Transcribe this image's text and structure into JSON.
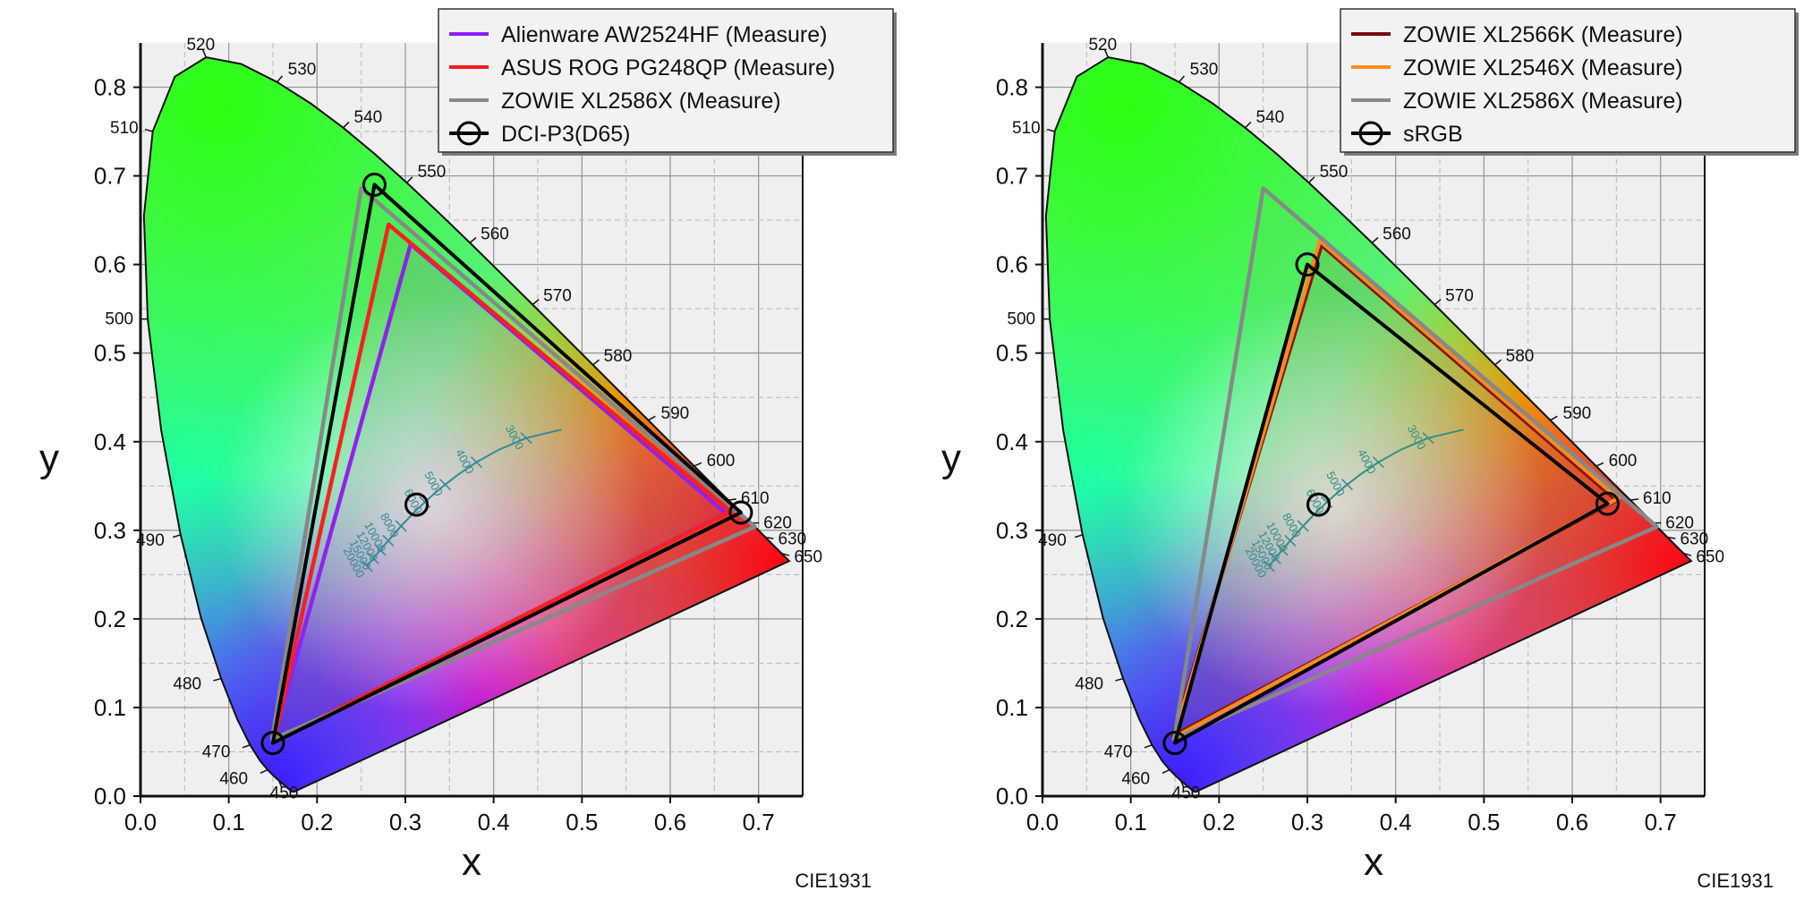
{
  "chart_data": [
    {
      "type": "scatter",
      "diagram": "CIE 1931 chromaticity diagram",
      "xlabel": "x",
      "ylabel": "y",
      "xlim": [
        0.0,
        0.75
      ],
      "ylim": [
        0.0,
        0.85
      ],
      "xticks": [
        "0.0",
        "0.1",
        "0.2",
        "0.3",
        "0.4",
        "0.5",
        "0.6",
        "0.7"
      ],
      "yticks": [
        "0.0",
        "0.1",
        "0.2",
        "0.3",
        "0.4",
        "0.5",
        "0.6",
        "0.7",
        "0.8"
      ],
      "grid": true,
      "footer": "CIE1931",
      "legend_position": "top-right",
      "wavelength_labels": [
        "450",
        "460",
        "470",
        "480",
        "490",
        "500",
        "510",
        "520",
        "530",
        "540",
        "550",
        "560",
        "570",
        "580",
        "590",
        "600",
        "610",
        "620",
        "630",
        "650"
      ],
      "cct_labels": [
        "3000",
        "4000",
        "5000",
        "6000",
        "8000",
        "10000",
        "12000",
        "15000",
        "20000"
      ],
      "series": [
        {
          "name": "Alienware AW2524HF (Measure)",
          "color": "#8b1cff",
          "points": [
            [
              0.306,
              0.623
            ],
            [
              0.663,
              0.319
            ],
            [
              0.15,
              0.061
            ]
          ]
        },
        {
          "name": "ASUS ROG PG248QP (Measure)",
          "color": "#ff1a1a",
          "points": [
            [
              0.281,
              0.645
            ],
            [
              0.668,
              0.321
            ],
            [
              0.151,
              0.062
            ]
          ]
        },
        {
          "name": "ZOWIE XL2586X (Measure)",
          "color": "#888888",
          "points": [
            [
              0.25,
              0.686
            ],
            [
              0.696,
              0.304
            ],
            [
              0.149,
              0.064
            ]
          ]
        },
        {
          "name": "DCI-P3(D65)",
          "color": "#000000",
          "marker": "circle",
          "points": [
            [
              0.265,
              0.69
            ],
            [
              0.68,
              0.32
            ],
            [
              0.15,
              0.06
            ],
            [
              0.3127,
              0.329
            ]
          ]
        }
      ]
    },
    {
      "type": "scatter",
      "diagram": "CIE 1931 chromaticity diagram",
      "xlabel": "x",
      "ylabel": "y",
      "xlim": [
        0.0,
        0.75
      ],
      "ylim": [
        0.0,
        0.85
      ],
      "xticks": [
        "0.0",
        "0.1",
        "0.2",
        "0.3",
        "0.4",
        "0.5",
        "0.6",
        "0.7"
      ],
      "yticks": [
        "0.0",
        "0.1",
        "0.2",
        "0.3",
        "0.4",
        "0.5",
        "0.6",
        "0.7",
        "0.8"
      ],
      "grid": true,
      "footer": "CIE1931",
      "legend_position": "top-right",
      "wavelength_labels": [
        "450",
        "460",
        "470",
        "480",
        "490",
        "500",
        "510",
        "520",
        "530",
        "540",
        "550",
        "560",
        "570",
        "580",
        "590",
        "600",
        "610",
        "620",
        "630",
        "650"
      ],
      "cct_labels": [
        "3000",
        "4000",
        "5000",
        "6000",
        "8000",
        "10000",
        "12000",
        "15000",
        "20000"
      ],
      "series": [
        {
          "name": "ZOWIE XL2566K (Measure)",
          "color": "#7a0a0a",
          "points": [
            [
              0.316,
              0.622
            ],
            [
              0.65,
              0.334
            ],
            [
              0.148,
              0.068
            ]
          ]
        },
        {
          "name": "ZOWIE XL2546X (Measure)",
          "color": "#ff8c1a",
          "points": [
            [
              0.314,
              0.627
            ],
            [
              0.652,
              0.336
            ],
            [
              0.149,
              0.066
            ]
          ]
        },
        {
          "name": "ZOWIE XL2586X (Measure)",
          "color": "#888888",
          "points": [
            [
              0.25,
              0.686
            ],
            [
              0.696,
              0.304
            ],
            [
              0.149,
              0.064
            ]
          ]
        },
        {
          "name": "sRGB",
          "color": "#000000",
          "marker": "circle",
          "points": [
            [
              0.3,
              0.6
            ],
            [
              0.64,
              0.33
            ],
            [
              0.15,
              0.06
            ],
            [
              0.3127,
              0.329
            ]
          ]
        }
      ]
    }
  ]
}
